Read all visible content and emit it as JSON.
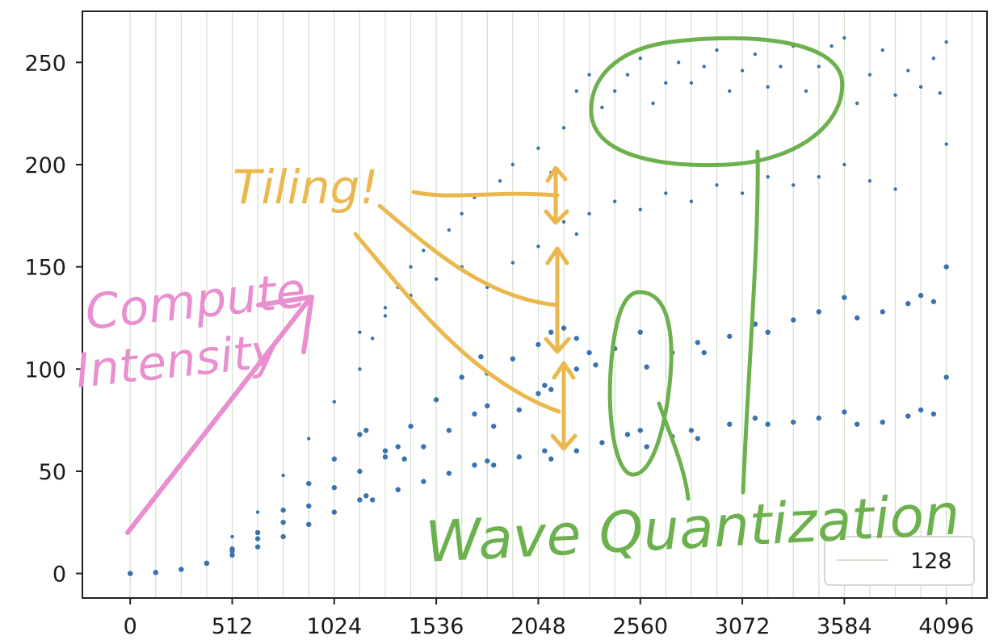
{
  "chart_data": {
    "type": "scatter",
    "title": "",
    "xlabel": "",
    "ylabel": "",
    "xlim": [
      -240,
      4300
    ],
    "ylim": [
      -12,
      275
    ],
    "x_ticks": [
      0,
      512,
      1024,
      1536,
      2048,
      2560,
      3072,
      3584,
      4096
    ],
    "x_tick_labels": [
      "0",
      "512",
      "1024",
      "1536",
      "2048",
      "2560",
      "3072",
      "3584",
      "4096"
    ],
    "y_ticks": [
      0,
      50,
      100,
      150,
      200,
      250
    ],
    "y_tick_labels": [
      "0",
      "50",
      "100",
      "150",
      "200",
      "250"
    ],
    "grid": "vertical lines every 128",
    "grid_step": 128,
    "legend": {
      "entries": [
        "128"
      ],
      "placement": "bottom-right"
    },
    "series_color": "#3a72b0",
    "grid_color": "#cfe3c9",
    "series": [
      {
        "description": "lower dense band",
        "points": [
          [
            0,
            0
          ],
          [
            128,
            0.5
          ],
          [
            256,
            2
          ],
          [
            384,
            5
          ],
          [
            512,
            9
          ],
          [
            640,
            13
          ],
          [
            768,
            18
          ],
          [
            896,
            24
          ],
          [
            1024,
            30
          ],
          [
            1152,
            36
          ],
          [
            1184,
            38
          ],
          [
            1216,
            36
          ],
          [
            1344,
            41
          ],
          [
            1472,
            45
          ],
          [
            1600,
            49
          ],
          [
            1728,
            53
          ],
          [
            1792,
            55
          ],
          [
            1824,
            53
          ],
          [
            1952,
            57
          ],
          [
            2080,
            60
          ],
          [
            2112,
            56
          ],
          [
            2240,
            60
          ],
          [
            2368,
            64
          ],
          [
            2496,
            68
          ],
          [
            2560,
            70
          ],
          [
            2592,
            62
          ],
          [
            2720,
            67
          ],
          [
            2816,
            70
          ],
          [
            2848,
            66
          ],
          [
            3008,
            73
          ],
          [
            3136,
            76
          ],
          [
            3200,
            73
          ],
          [
            3328,
            74
          ],
          [
            3456,
            76
          ],
          [
            3584,
            79
          ],
          [
            3648,
            73
          ],
          [
            3776,
            74
          ],
          [
            3904,
            77
          ],
          [
            3968,
            80
          ],
          [
            4032,
            78
          ],
          [
            4096,
            96
          ]
        ]
      },
      {
        "description": "middle dense band",
        "points": [
          [
            0,
            0
          ],
          [
            128,
            0.5
          ],
          [
            256,
            2
          ],
          [
            384,
            5
          ],
          [
            512,
            11
          ],
          [
            640,
            17
          ],
          [
            768,
            25
          ],
          [
            896,
            33
          ],
          [
            1024,
            42
          ],
          [
            1152,
            50
          ],
          [
            1280,
            57
          ],
          [
            1344,
            62
          ],
          [
            1376,
            56
          ],
          [
            1472,
            62
          ],
          [
            1600,
            70
          ],
          [
            1728,
            78
          ],
          [
            1792,
            82
          ],
          [
            1824,
            72
          ],
          [
            1952,
            80
          ],
          [
            2048,
            88
          ],
          [
            2080,
            92
          ],
          [
            2112,
            90
          ],
          [
            2240,
            100
          ],
          [
            2304,
            108
          ],
          [
            2336,
            102
          ],
          [
            2432,
            110
          ],
          [
            2560,
            118
          ],
          [
            2592,
            101
          ],
          [
            2720,
            108
          ],
          [
            2848,
            113
          ],
          [
            2880,
            108
          ],
          [
            3008,
            116
          ],
          [
            3136,
            122
          ],
          [
            3200,
            118
          ],
          [
            3328,
            124
          ],
          [
            3456,
            128
          ],
          [
            3584,
            135
          ],
          [
            3648,
            125
          ],
          [
            3776,
            128
          ],
          [
            3904,
            132
          ],
          [
            3968,
            136
          ],
          [
            4032,
            133
          ],
          [
            4096,
            150
          ]
        ]
      },
      {
        "description": "upper dense band",
        "points": [
          [
            384,
            5
          ],
          [
            512,
            12
          ],
          [
            640,
            20
          ],
          [
            768,
            31
          ],
          [
            896,
            44
          ],
          [
            1024,
            56
          ],
          [
            1152,
            68
          ],
          [
            1184,
            70
          ],
          [
            1280,
            60
          ],
          [
            1408,
            72
          ],
          [
            1536,
            85
          ],
          [
            1664,
            96
          ],
          [
            1760,
            106
          ],
          [
            1792,
            98
          ],
          [
            1920,
            105
          ],
          [
            2048,
            112
          ],
          [
            2112,
            118
          ],
          [
            2176,
            120
          ],
          [
            2240,
            115
          ]
        ]
      },
      {
        "description": "sparse scattered points",
        "points": [
          [
            512,
            18
          ],
          [
            640,
            30
          ],
          [
            768,
            48
          ],
          [
            896,
            66
          ],
          [
            1024,
            84
          ],
          [
            1152,
            100
          ],
          [
            1216,
            115
          ],
          [
            1280,
            130
          ],
          [
            1344,
            140
          ],
          [
            1408,
            150
          ],
          [
            1472,
            158
          ],
          [
            1600,
            168
          ],
          [
            1664,
            176
          ],
          [
            1728,
            184
          ],
          [
            1856,
            192
          ],
          [
            1920,
            200
          ],
          [
            2048,
            208
          ],
          [
            2112,
            196
          ],
          [
            2176,
            218
          ],
          [
            2240,
            236
          ],
          [
            2304,
            244
          ],
          [
            2368,
            228
          ],
          [
            2432,
            236
          ],
          [
            2496,
            244
          ],
          [
            2560,
            252
          ],
          [
            2624,
            230
          ],
          [
            2688,
            240
          ],
          [
            2752,
            250
          ],
          [
            2816,
            240
          ],
          [
            2880,
            248
          ],
          [
            2944,
            256
          ],
          [
            3008,
            236
          ],
          [
            3072,
            246
          ],
          [
            3136,
            254
          ],
          [
            3200,
            238
          ],
          [
            3264,
            248
          ],
          [
            3328,
            258
          ],
          [
            3392,
            236
          ],
          [
            3456,
            248
          ],
          [
            3520,
            258
          ],
          [
            3584,
            262
          ],
          [
            3648,
            230
          ],
          [
            3712,
            244
          ],
          [
            3776,
            256
          ],
          [
            3840,
            234
          ],
          [
            3904,
            246
          ],
          [
            3968,
            238
          ],
          [
            4032,
            252
          ],
          [
            4096,
            260
          ],
          [
            2176,
            172
          ],
          [
            2240,
            166
          ],
          [
            2304,
            176
          ],
          [
            2432,
            182
          ],
          [
            2560,
            178
          ],
          [
            2688,
            186
          ],
          [
            2816,
            182
          ],
          [
            2944,
            190
          ],
          [
            3072,
            186
          ],
          [
            3200,
            194
          ],
          [
            3328,
            190
          ],
          [
            3456,
            194
          ],
          [
            3584,
            200
          ],
          [
            3712,
            192
          ],
          [
            3840,
            188
          ],
          [
            1152,
            118
          ],
          [
            1280,
            126
          ],
          [
            1408,
            136
          ],
          [
            1536,
            144
          ],
          [
            1664,
            150
          ],
          [
            1792,
            140
          ],
          [
            1920,
            152
          ],
          [
            2048,
            160
          ],
          [
            4096,
            210
          ],
          [
            4064,
            235
          ]
        ]
      }
    ],
    "annotations": {
      "compute_intensity": [
        "Compute",
        "Intensity"
      ],
      "tiling": "Tiling!",
      "wave_quantization": "Wave Quantization"
    },
    "annotation_colors": {
      "compute": "#e98fd0",
      "tiling": "#eab84f",
      "wave": "#6db14e"
    }
  }
}
